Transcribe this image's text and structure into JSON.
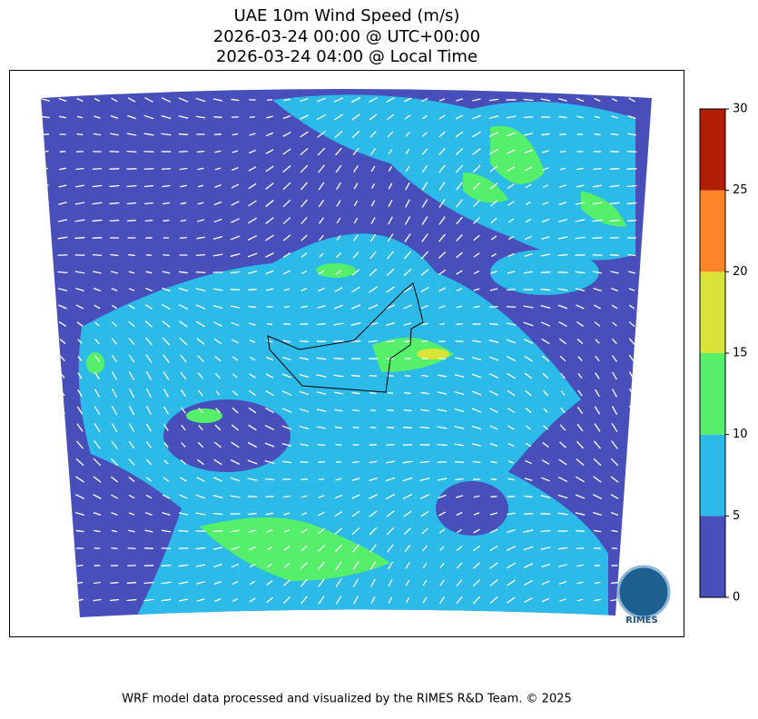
{
  "title": [
    "UAE 10m Wind Speed (m/s)",
    "2026-03-24 00:00 @ UTC+00:00",
    "2026-03-24 04:00 @ Local Time"
  ],
  "colorbar": {
    "bounds": [
      0,
      5,
      10,
      15,
      20,
      25,
      30
    ],
    "colors": [
      "#484fbb",
      "#2cbbe8",
      "#56ef6b",
      "#dae337",
      "#fd8427",
      "#b11e05"
    ]
  },
  "logo": {
    "text": "RIMES"
  },
  "footer": "WRF model data processed and visualized by the RIMES R&D Team. © 2025"
}
